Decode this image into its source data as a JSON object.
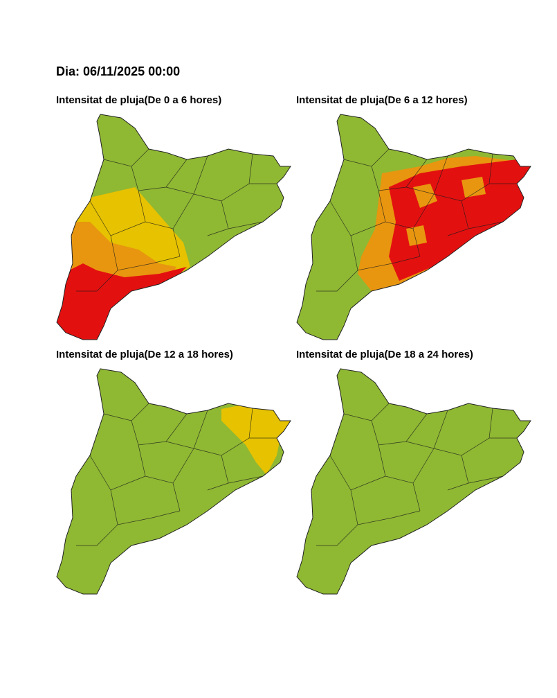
{
  "header": {
    "title": "Dia: 06/11/2025 00:00"
  },
  "panels": [
    {
      "title": "Intensitat de pluja(De 0 a 6 hores)"
    },
    {
      "title": "Intensitat de pluja(De 6 a 12 hores)"
    },
    {
      "title": "Intensitat de pluja(De 12 a 18 hores)"
    },
    {
      "title": "Intensitat de pluja(De 18 a 24 hores)"
    }
  ]
}
